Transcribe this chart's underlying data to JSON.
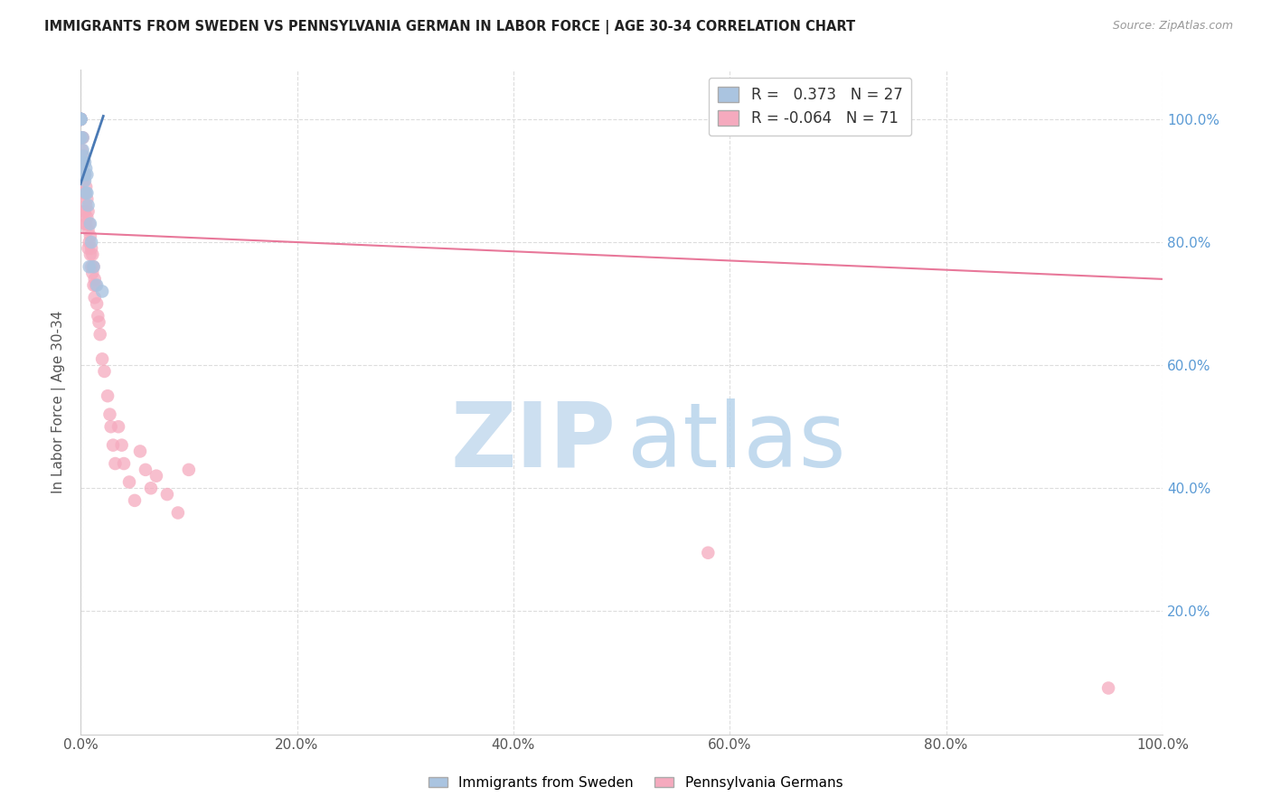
{
  "title": "IMMIGRANTS FROM SWEDEN VS PENNSYLVANIA GERMAN IN LABOR FORCE | AGE 30-34 CORRELATION CHART",
  "source": "Source: ZipAtlas.com",
  "ylabel": "In Labor Force | Age 30-34",
  "xlim": [
    0,
    1.0
  ],
  "ylim": [
    0,
    1.08
  ],
  "sweden_R": 0.373,
  "sweden_N": 27,
  "pagerman_R": -0.064,
  "pagerman_N": 71,
  "sweden_color": "#aac4e0",
  "pagerman_color": "#f5aabe",
  "sweden_line_color": "#4a7ab5",
  "pagerman_line_color": "#e8789a",
  "background_color": "#ffffff",
  "grid_color": "#dddddd",
  "title_color": "#222222",
  "sweden_points_x": [
    0.0,
    0.0,
    0.0,
    0.0,
    0.0,
    0.0,
    0.0,
    0.0,
    0.002,
    0.002,
    0.003,
    0.003,
    0.003,
    0.004,
    0.004,
    0.004,
    0.005,
    0.005,
    0.006,
    0.006,
    0.007,
    0.008,
    0.009,
    0.01,
    0.012,
    0.015,
    0.02
  ],
  "sweden_points_y": [
    1.0,
    1.0,
    1.0,
    1.0,
    1.0,
    1.0,
    1.0,
    0.97,
    0.97,
    0.95,
    0.94,
    0.93,
    0.91,
    0.93,
    0.91,
    0.9,
    0.92,
    0.88,
    0.91,
    0.88,
    0.86,
    0.76,
    0.83,
    0.8,
    0.76,
    0.73,
    0.72
  ],
  "pagerman_points_x": [
    0.0,
    0.0,
    0.0,
    0.0,
    0.0,
    0.0,
    0.0,
    0.0,
    0.0,
    0.001,
    0.001,
    0.001,
    0.001,
    0.002,
    0.002,
    0.002,
    0.002,
    0.003,
    0.003,
    0.003,
    0.003,
    0.004,
    0.004,
    0.004,
    0.004,
    0.005,
    0.005,
    0.005,
    0.006,
    0.006,
    0.007,
    0.007,
    0.007,
    0.008,
    0.008,
    0.009,
    0.009,
    0.01,
    0.01,
    0.011,
    0.011,
    0.012,
    0.012,
    0.013,
    0.013,
    0.014,
    0.015,
    0.016,
    0.017,
    0.018,
    0.02,
    0.022,
    0.025,
    0.027,
    0.028,
    0.03,
    0.032,
    0.035,
    0.038,
    0.04,
    0.045,
    0.05,
    0.055,
    0.06,
    0.065,
    0.07,
    0.08,
    0.09,
    0.1,
    0.58,
    0.95
  ],
  "pagerman_points_y": [
    1.0,
    1.0,
    1.0,
    1.0,
    1.0,
    1.0,
    1.0,
    1.0,
    1.0,
    0.97,
    0.95,
    0.93,
    0.91,
    0.97,
    0.94,
    0.91,
    0.88,
    0.93,
    0.9,
    0.88,
    0.85,
    0.91,
    0.88,
    0.85,
    0.83,
    0.89,
    0.86,
    0.83,
    0.87,
    0.84,
    0.85,
    0.82,
    0.79,
    0.83,
    0.8,
    0.81,
    0.78,
    0.79,
    0.76,
    0.78,
    0.75,
    0.76,
    0.73,
    0.74,
    0.71,
    0.73,
    0.7,
    0.68,
    0.67,
    0.65,
    0.61,
    0.59,
    0.55,
    0.52,
    0.5,
    0.47,
    0.44,
    0.5,
    0.47,
    0.44,
    0.41,
    0.38,
    0.46,
    0.43,
    0.4,
    0.42,
    0.39,
    0.36,
    0.43,
    0.295,
    0.075
  ],
  "sweden_line_x": [
    0.0,
    0.021
  ],
  "sweden_line_y": [
    0.895,
    1.005
  ],
  "pagerman_line_x": [
    0.0,
    1.0
  ],
  "pagerman_line_y": [
    0.815,
    0.74
  ]
}
